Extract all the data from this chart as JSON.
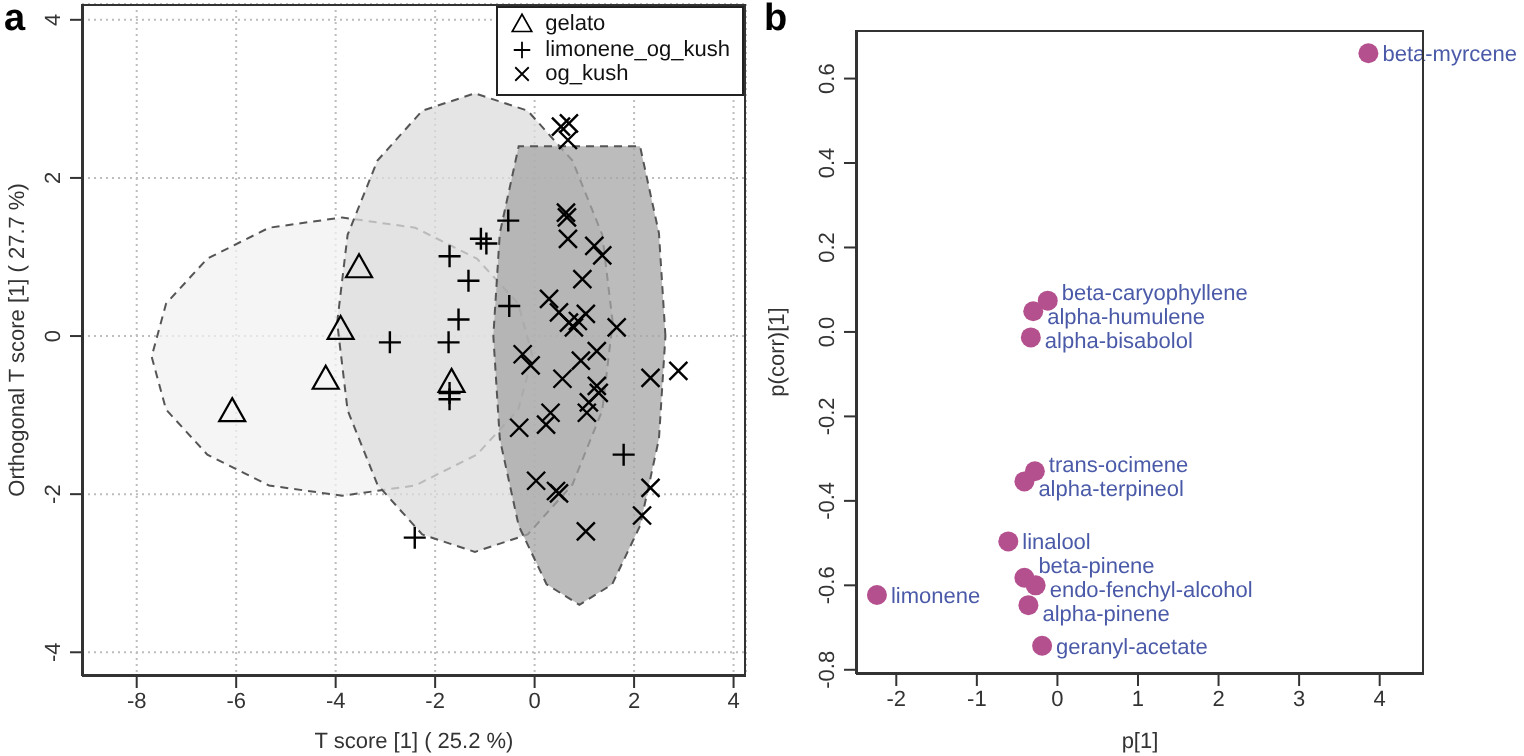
{
  "chart_data": [
    {
      "type": "scatter",
      "title": "a",
      "xlabel": "T score [1] ( 25.2 %)",
      "ylabel": "Orthogonal T score [1] ( 27.7 %)",
      "xlim": [
        -9.1,
        4.25
      ],
      "ylim": [
        -4.3,
        4.2
      ],
      "xticks": [
        -8,
        -6,
        -4,
        -2,
        0,
        2,
        4
      ],
      "yticks": [
        -4,
        -2,
        0,
        2,
        4
      ],
      "grid": true,
      "legend": "top right",
      "series": [
        {
          "type": "area",
          "color": "#f2f2f2",
          "line_style": "dashed",
          "x": [
            -0.04,
            -0.33,
            -1.16,
            -2.4,
            -3.87,
            -5.34,
            -6.58,
            -7.41,
            -7.7,
            -7.41,
            -6.58,
            -5.34,
            -3.87,
            -2.4,
            -1.16,
            -0.33,
            -0.04
          ],
          "values": [
            -0.26,
            0.41,
            0.98,
            1.37,
            1.5,
            1.37,
            0.98,
            0.41,
            -0.26,
            -0.93,
            -1.5,
            -1.89,
            -2.02,
            -1.89,
            -1.5,
            -0.93,
            -0.26
          ]
        },
        {
          "type": "area",
          "color": "#dcdcdc",
          "line_style": "dashed",
          "x": [
            1.57,
            1.36,
            0.76,
            -0.14,
            -1.2,
            -2.26,
            -3.16,
            -3.76,
            -3.97,
            -3.76,
            -3.16,
            -2.26,
            -1.2,
            -0.14,
            0.76,
            1.36,
            1.57
          ],
          "values": [
            0.17,
            1.28,
            2.22,
            2.85,
            3.07,
            2.85,
            2.22,
            1.28,
            0.17,
            -0.94,
            -1.88,
            -2.51,
            -2.73,
            -2.51,
            -1.88,
            -0.94,
            0.17
          ]
        },
        {
          "type": "area",
          "color": "#a6a6a6",
          "line_style": "dashed",
          "x": [
            2.63,
            2.5,
            2.12,
            1.56,
            0.9,
            0.24,
            -0.32,
            -0.7,
            -0.83,
            -0.7,
            -0.32,
            0.24,
            0.9,
            1.56,
            2.12,
            2.5,
            2.63
          ],
          "values": [
            0,
            1.3,
            2.4,
            null,
            null,
            null,
            2.4,
            1.3,
            0,
            -1.3,
            -2.4,
            -3.14,
            -3.4,
            -3.14,
            -2.4,
            -1.3,
            0
          ]
        },
        {
          "name": "gelato",
          "color": "#000000",
          "marker": "triangle",
          "x": [
            -6.08,
            -4.2,
            -3.9,
            -3.53,
            -1.67
          ],
          "values": [
            -0.95,
            -0.54,
            0.09,
            0.87,
            -0.58
          ]
        },
        {
          "name": "limonene_og_kush",
          "color": "#000000",
          "marker": "plus",
          "x": [
            -0.53,
            -1.08,
            -0.97,
            -1.71,
            -1.33,
            -1.53,
            -2.91,
            -1.73,
            -1.71,
            -1.71,
            -0.51,
            -2.41,
            1.79
          ],
          "values": [
            1.46,
            1.23,
            1.17,
            1.01,
            0.7,
            0.21,
            -0.08,
            -0.08,
            -0.72,
            -0.8,
            0.38,
            -2.55,
            -1.5
          ]
        },
        {
          "name": "og_kush",
          "color": "#000000",
          "marker": "cross",
          "x": [
            0.53,
            0.69,
            0.67,
            0.63,
            0.65,
            0.67,
            1.2,
            1.36,
            0.96,
            0.29,
            0.49,
            0.69,
            0.79,
            0.87,
            1.03,
            1.65,
            -0.24,
            -0.08,
            0.93,
            1.25,
            0.56,
            1.25,
            1.29,
            1.09,
            1.05,
            0.32,
            0.23,
            -0.31,
            2.33,
            2.89,
            0.03,
            0.43,
            0.49,
            2.33,
            2.16,
            1.03
          ],
          "values": [
            2.65,
            2.69,
            2.48,
            1.56,
            1.5,
            1.23,
            1.14,
            1.02,
            0.72,
            0.47,
            0.3,
            0.17,
            0.11,
            0.19,
            0.28,
            0.11,
            -0.23,
            -0.37,
            -0.31,
            -0.19,
            -0.54,
            -0.63,
            -0.72,
            -0.84,
            -0.97,
            -0.97,
            -1.12,
            -1.16,
            -0.53,
            -0.44,
            -1.83,
            -1.96,
            -1.99,
            -1.92,
            -2.27,
            -2.47
          ]
        }
      ]
    },
    {
      "type": "scatter",
      "title": "b",
      "xlabel": "p[1]",
      "ylabel": "p(corr)[1]",
      "xlim": [
        -2.5,
        4.55
      ],
      "ylim": [
        -0.81,
        0.715
      ],
      "xticks": [
        -2,
        -1,
        0,
        1,
        2,
        3,
        4
      ],
      "yticks": [
        -0.8,
        -0.6,
        -0.4,
        -0.2,
        {
          "value": 0,
          "label": "0.0"
        },
        0.2,
        0.4,
        0.6
      ],
      "marker": "circle",
      "series": [
        {
          "color": "#b5508f",
          "x": [
            3.86,
            -0.12,
            -0.3,
            -0.33,
            -0.28,
            -0.41,
            -0.61,
            -0.41,
            -0.27,
            -2.24,
            -0.36,
            -0.19
          ],
          "values": [
            0.66,
            0.074,
            0.049,
            -0.013,
            -0.33,
            -0.354,
            -0.496,
            -0.582,
            -0.6,
            -0.623,
            -0.647,
            -0.743
          ]
        }
      ],
      "annotations": [
        {
          "text": "beta-myrcene",
          "x": 3.86,
          "y": 0.66
        },
        {
          "text": "beta-caryophyllene",
          "x": -0.12,
          "y": 0.074
        },
        {
          "text": "alpha-humulene",
          "x": -0.3,
          "y": 0.049
        },
        {
          "text": "alpha-bisabolol",
          "x": -0.33,
          "y": -0.013
        },
        {
          "text": "trans-ocimene",
          "x": -0.28,
          "y": -0.33
        },
        {
          "text": "alpha-terpineol",
          "x": -0.41,
          "y": -0.354
        },
        {
          "text": "linalool",
          "x": -0.61,
          "y": -0.496
        },
        {
          "text": "beta-pinene",
          "x": -0.41,
          "y": -0.582
        },
        {
          "text": "endo-fenchyl-alcohol",
          "x": -0.27,
          "y": -0.6
        },
        {
          "text": "limonene",
          "x": -2.24,
          "y": -0.623
        },
        {
          "text": "alpha-pinene",
          "x": -0.36,
          "y": -0.647
        },
        {
          "text": "geranyl-acetate",
          "x": -0.19,
          "y": -0.743
        }
      ]
    }
  ]
}
